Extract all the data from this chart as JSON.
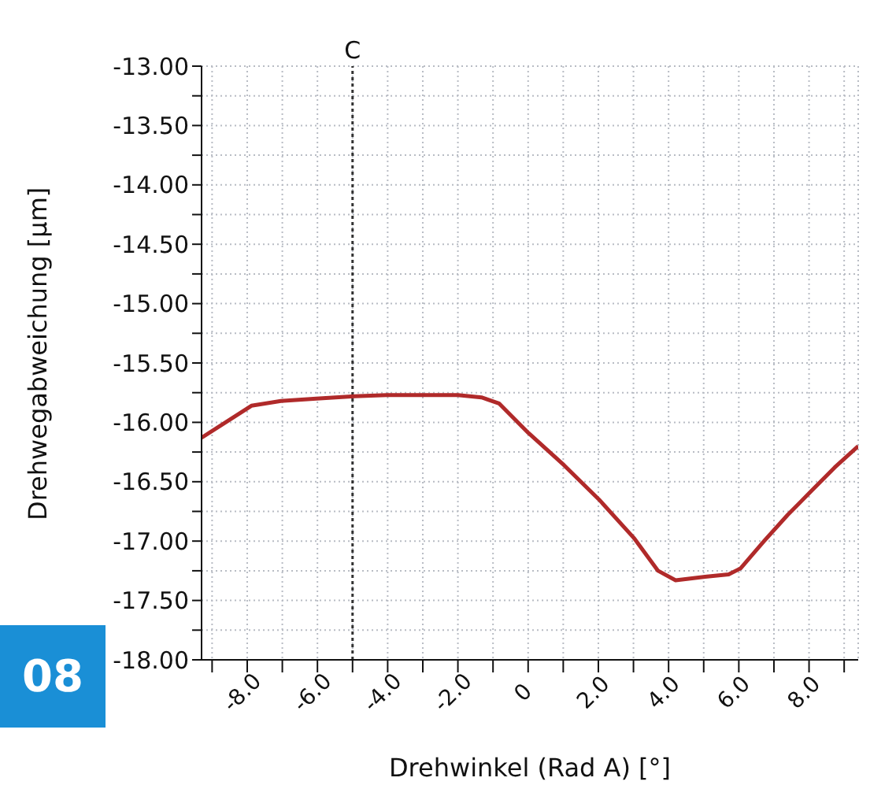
{
  "chart_data": {
    "type": "line",
    "xlabel": "Drehwinkel (Rad A) [°]",
    "ylabel": "Drehwegabweichung [µm]",
    "annotations": [
      "08"
    ],
    "x": [
      -9.3,
      -8.72,
      -7.88,
      -7.04,
      -6.03,
      -4.94,
      -4.02,
      -3.01,
      -2.0,
      -1.33,
      -0.83,
      0.01,
      1.02,
      2.02,
      3.03,
      3.7,
      4.2,
      5.04,
      5.71,
      6.05,
      6.72,
      7.39,
      8.06,
      8.73,
      9.4
    ],
    "series": [
      {
        "color": "#b02a2a",
        "values": [
          -16.13,
          -16.02,
          -15.86,
          -15.82,
          -15.8,
          -15.78,
          -15.77,
          -15.77,
          -15.77,
          -15.79,
          -15.84,
          -16.09,
          -16.36,
          -16.65,
          -16.98,
          -17.25,
          -17.33,
          -17.3,
          -17.28,
          -17.23,
          -17.0,
          -16.78,
          -16.58,
          -16.38,
          -16.2
        ]
      }
    ],
    "xlim": [
      -9.3,
      9.4
    ],
    "xticks": [
      {
        "value": -9,
        "label": null
      },
      {
        "value": -8,
        "label": "-8.0"
      },
      {
        "value": -7,
        "label": null
      },
      {
        "value": -6,
        "label": "-6.0"
      },
      {
        "value": -5,
        "label": null
      },
      {
        "value": -4,
        "label": "-4.0"
      },
      {
        "value": -3,
        "label": null
      },
      {
        "value": -2,
        "label": "-2.0"
      },
      {
        "value": -1,
        "label": null
      },
      0,
      {
        "value": 1,
        "label": null
      },
      {
        "value": 2,
        "label": "2.0"
      },
      {
        "value": 3,
        "label": null
      },
      {
        "value": 4,
        "label": "4.0"
      },
      {
        "value": 5,
        "label": null
      },
      {
        "value": 6,
        "label": "6.0"
      },
      {
        "value": 7,
        "label": null
      },
      {
        "value": 8,
        "label": "8.0"
      },
      {
        "value": 9,
        "label": null
      }
    ],
    "ylim": [
      -18,
      -13
    ],
    "yticks": [
      {
        "value": -18,
        "label": "-18.00"
      },
      {
        "value": -17.75,
        "label": null
      },
      {
        "value": -17.5,
        "label": "-17.50"
      },
      {
        "value": -17.25,
        "label": null
      },
      {
        "value": -17,
        "label": "-17.00"
      },
      {
        "value": -16.75,
        "label": null
      },
      {
        "value": -16.5,
        "label": "-16.50"
      },
      {
        "value": -16.25,
        "label": null
      },
      {
        "value": -16,
        "label": "-16.00"
      },
      {
        "value": -15.75,
        "label": null
      },
      {
        "value": -15.5,
        "label": "-15.50"
      },
      {
        "value": -15.25,
        "label": null
      },
      {
        "value": -15,
        "label": "-15.00"
      },
      {
        "value": -14.75,
        "label": null
      },
      {
        "value": -14.5,
        "label": "-14.50"
      },
      {
        "value": -14.25,
        "label": null
      },
      {
        "value": -14,
        "label": "-14.00"
      },
      {
        "value": -13.75,
        "label": null
      },
      {
        "value": -13.5,
        "label": "-13.50"
      },
      {
        "value": -13.25,
        "label": null
      },
      {
        "value": -13,
        "label": "-13.00"
      }
    ],
    "ref_lines": [
      {
        "axis": "x",
        "value": -5,
        "label": "C",
        "color": "#333333",
        "line_style": "dotted"
      }
    ],
    "grid": true,
    "legend": false,
    "marker": "none",
    "line_style": "solid"
  }
}
